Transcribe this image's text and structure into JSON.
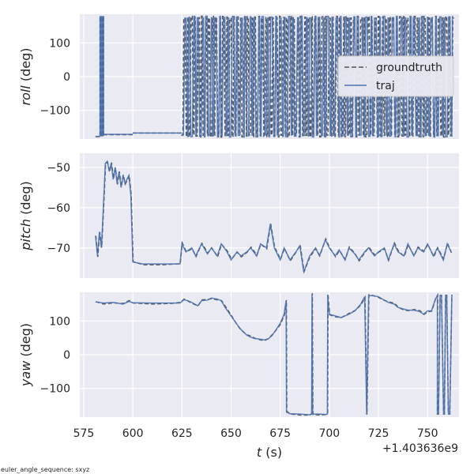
{
  "chart_data": {
    "type": "line",
    "panels": [
      {
        "ylabel_var": "roll",
        "ylabel_unit": " (deg)",
        "ylim": [
          -185,
          185
        ],
        "yticks": [
          100,
          0,
          -100
        ],
        "mode": "wrap",
        "series": [
          {
            "name": "groundtruth",
            "color": "#555555",
            "segments": [
              [
                581,
                583.5,
                -178
              ],
              [
                583.5,
                585,
                -175
              ],
              [
                585,
                600,
                -172
              ],
              [
                600,
                625,
                -167
              ]
            ],
            "wrap_start": 625,
            "wrap_end": 763,
            "wrap_period": 0.9
          },
          {
            "name": "traj",
            "color": "#4c72b0",
            "segments": [
              [
                581,
                583.5,
                -177
              ],
              [
                583.5,
                585,
                -174
              ],
              [
                585,
                600,
                -171
              ],
              [
                600,
                625,
                -167
              ]
            ],
            "wrap_start": 625,
            "wrap_end": 763,
            "wrap_period": 1.1
          }
        ],
        "spikes": [
          583.3,
          584.2,
          584.8
        ]
      },
      {
        "ylabel_var": "pitch",
        "ylabel_unit": " (deg)",
        "ylim": [
          -77.5,
          -46.5
        ],
        "yticks": [
          -50,
          -60,
          -70
        ],
        "mode": "values",
        "points": [
          [
            581,
            -67
          ],
          [
            582,
            -72
          ],
          [
            583,
            -66
          ],
          [
            584,
            -70
          ],
          [
            585,
            -60
          ],
          [
            586,
            -49
          ],
          [
            587,
            -48.5
          ],
          [
            588,
            -51
          ],
          [
            589,
            -49
          ],
          [
            590,
            -53
          ],
          [
            591,
            -50
          ],
          [
            592,
            -54
          ],
          [
            593,
            -51
          ],
          [
            594,
            -55
          ],
          [
            595,
            -52
          ],
          [
            596,
            -54
          ],
          [
            597,
            -53
          ],
          [
            598,
            -52
          ],
          [
            599,
            -57
          ],
          [
            600,
            -73.5
          ],
          [
            605,
            -74
          ],
          [
            615,
            -74
          ],
          [
            624,
            -74
          ],
          [
            625,
            -69
          ],
          [
            627,
            -71
          ],
          [
            630,
            -70
          ],
          [
            632,
            -72
          ],
          [
            635,
            -69
          ],
          [
            638,
            -71.5
          ],
          [
            640,
            -70
          ],
          [
            643,
            -72
          ],
          [
            645,
            -69
          ],
          [
            648,
            -71
          ],
          [
            650,
            -73
          ],
          [
            653,
            -71
          ],
          [
            655,
            -72
          ],
          [
            658,
            -71
          ],
          [
            660,
            -70
          ],
          [
            663,
            -72
          ],
          [
            665,
            -69
          ],
          [
            668,
            -70
          ],
          [
            670,
            -64
          ],
          [
            672,
            -70
          ],
          [
            675,
            -73
          ],
          [
            677,
            -70
          ],
          [
            680,
            -73
          ],
          [
            683,
            -71
          ],
          [
            685,
            -69.5
          ],
          [
            687,
            -76
          ],
          [
            690,
            -72
          ],
          [
            693,
            -70
          ],
          [
            695,
            -72
          ],
          [
            698,
            -68
          ],
          [
            700,
            -70
          ],
          [
            703,
            -72
          ],
          [
            705,
            -70.5
          ],
          [
            708,
            -73
          ],
          [
            710,
            -70
          ],
          [
            713,
            -71.5
          ],
          [
            715,
            -73
          ],
          [
            718,
            -71
          ],
          [
            720,
            -70
          ],
          [
            723,
            -72
          ],
          [
            725,
            -71
          ],
          [
            728,
            -70
          ],
          [
            730,
            -73
          ],
          [
            733,
            -69
          ],
          [
            735,
            -71
          ],
          [
            738,
            -72
          ],
          [
            740,
            -69
          ],
          [
            743,
            -72
          ],
          [
            745,
            -70
          ],
          [
            748,
            -71
          ],
          [
            750,
            -69
          ],
          [
            753,
            -72
          ],
          [
            755,
            -70
          ],
          [
            758,
            -73
          ],
          [
            760,
            -69
          ],
          [
            762,
            -71
          ]
        ]
      },
      {
        "ylabel_var": "yaw",
        "ylabel_unit": " (deg)",
        "ylim": [
          -185,
          185
        ],
        "yticks": [
          100,
          0,
          -100
        ],
        "mode": "values",
        "points": [
          [
            581,
            157
          ],
          [
            585,
            153
          ],
          [
            590,
            155
          ],
          [
            595,
            150
          ],
          [
            598,
            158
          ],
          [
            600,
            154
          ],
          [
            610,
            153
          ],
          [
            620,
            153
          ],
          [
            624,
            153
          ],
          [
            626,
            163
          ],
          [
            628,
            160
          ],
          [
            630,
            155
          ],
          [
            633,
            145
          ],
          [
            635,
            160
          ],
          [
            638,
            162
          ],
          [
            640,
            168
          ],
          [
            643,
            165
          ],
          [
            645,
            160
          ],
          [
            647,
            140
          ],
          [
            650,
            115
          ],
          [
            653,
            90
          ],
          [
            655,
            75
          ],
          [
            658,
            58
          ],
          [
            660,
            52
          ],
          [
            662,
            48
          ],
          [
            665,
            46
          ],
          [
            667,
            44
          ],
          [
            669,
            47
          ],
          [
            671,
            58
          ],
          [
            673,
            75
          ],
          [
            675,
            93
          ],
          [
            677,
            120
          ],
          [
            678,
            160
          ],
          [
            678.2,
            -170
          ],
          [
            680,
            -175
          ],
          [
            685,
            -176
          ],
          [
            690,
            -178
          ],
          [
            691,
            -176
          ],
          [
            691.2,
            180
          ],
          [
            691.5,
            -176
          ],
          [
            695,
            -176
          ],
          [
            698,
            -177
          ],
          [
            699,
            -176
          ],
          [
            699.2,
            178
          ],
          [
            700,
            120
          ],
          [
            703,
            115
          ],
          [
            706,
            110
          ],
          [
            710,
            120
          ],
          [
            713,
            130
          ],
          [
            716,
            150
          ],
          [
            718,
            172
          ],
          [
            719,
            -178
          ],
          [
            720,
            175
          ],
          [
            722,
            175
          ],
          [
            725,
            172
          ],
          [
            727,
            165
          ],
          [
            730,
            155
          ],
          [
            733,
            150
          ],
          [
            735,
            140
          ],
          [
            738,
            135
          ],
          [
            740,
            132
          ],
          [
            743,
            132
          ],
          [
            746,
            128
          ],
          [
            748,
            120
          ],
          [
            750,
            130
          ],
          [
            752,
            130
          ],
          [
            754,
            165
          ],
          [
            755,
            175
          ]
        ],
        "wrap_start": 755,
        "wrap_end": 763,
        "wrap_period": 1.4
      }
    ],
    "xlabel_var": "t",
    "xlabel_unit": " (s)",
    "xlim": [
      573,
      766
    ],
    "xticks": [
      575,
      600,
      625,
      650,
      675,
      700,
      725,
      750
    ],
    "x_offset_label": "+1.403636e9",
    "legend": {
      "location": "upper-right of roll panel",
      "entries": [
        {
          "label": "groundtruth",
          "style": "dashed",
          "color": "#555555"
        },
        {
          "label": "traj",
          "style": "solid",
          "color": "#4c72b0"
        }
      ]
    },
    "grid": true,
    "footnote": "euler_angle_sequence: sxyz"
  }
}
